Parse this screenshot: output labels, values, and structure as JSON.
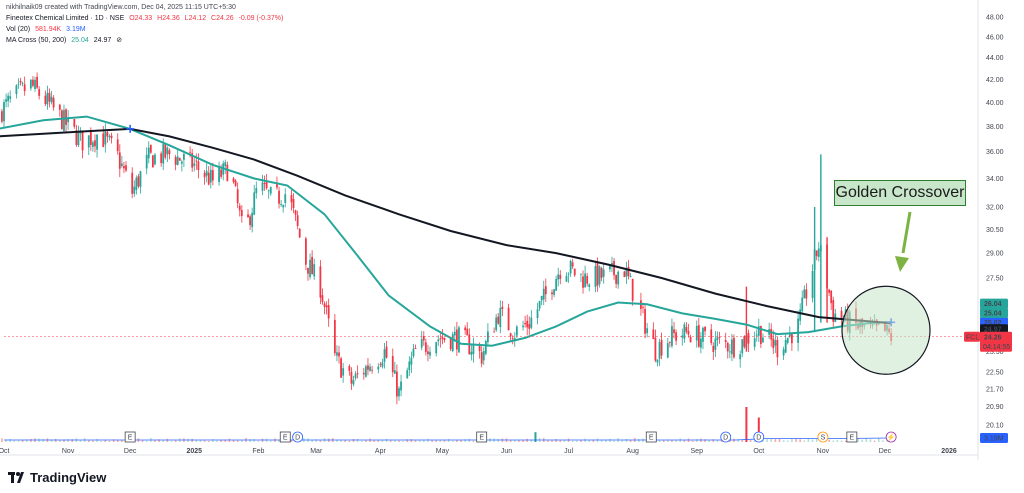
{
  "header": {
    "attribution": "nikhilnaik09 created with TradingView.com, Dec 04, 2025 11:15 UTC+5:30",
    "symbol": "Fineotex Chemical Limited · 1D · NSE",
    "ohlc": {
      "open": "O24.33",
      "high": "H24.36",
      "low": "L24.12",
      "close": "C24.26",
      "change": "-0.09 (-0.37%)"
    },
    "vol_label": "Vol (20)",
    "vol_value": "581.94K",
    "vol_ma": "3.19M",
    "ma_label": "MA Cross (50, 200)",
    "ma50": "25.04",
    "ma200": "24.97",
    "ma_icon": "eye-off-icon"
  },
  "annotation": {
    "text": "Golden Crossover"
  },
  "footer": {
    "brand": "TradingView"
  },
  "price_tags": [
    {
      "label": "26.04",
      "color": "#26a69a",
      "text": "#ffffff"
    },
    {
      "label": "25.02",
      "color": "#2962ff",
      "text": "#ffffff"
    },
    {
      "label": "24.97",
      "color": "#131722",
      "text": "#ffffff"
    },
    {
      "label": "25.04",
      "color": "#26a69a",
      "text": "#ffffff"
    }
  ],
  "current_price": {
    "symbol": "FCL",
    "price": "24.26",
    "countdown": "04:14:55",
    "color": "#f23645"
  },
  "volume_tag": {
    "label": "3.19M",
    "color": "#2962ff"
  },
  "colors": {
    "up": "#26a69a",
    "down": "#f23645",
    "ma50": "#26a69a",
    "ma200": "#131722",
    "highlight": "#c8e6c9"
  },
  "event_markers": [
    "E",
    "E",
    "D",
    "E",
    "E",
    "D",
    "D",
    "S",
    "E",
    "⚡"
  ],
  "chart_data": {
    "type": "candlestick",
    "y_ticks": [
      "48.00",
      "46.00",
      "44.00",
      "42.00",
      "40.00",
      "38.00",
      "36.00",
      "34.00",
      "32.00",
      "30.50",
      "29.00",
      "27.50",
      "26.00",
      "24.50",
      "23.50",
      "22.50",
      "21.70",
      "20.90",
      "20.10"
    ],
    "y_scale": "log",
    "ylim": [
      19.8,
      48.5
    ],
    "x_ticks": [
      "Oct",
      "Nov",
      "Dec",
      "2025",
      "Feb",
      "Mar",
      "Apr",
      "May",
      "Jun",
      "Jul",
      "Aug",
      "Sep",
      "Oct",
      "Nov",
      "Dec",
      "2026"
    ],
    "x_range": [
      "2024-10-01",
      "2026-01-15"
    ],
    "x_tick_dates": [
      "2024-10-01",
      "2024-11-01",
      "2024-12-01",
      "2025-01-01",
      "2025-02-01",
      "2025-03-01",
      "2025-04-01",
      "2025-05-01",
      "2025-06-01",
      "2025-07-01",
      "2025-08-01",
      "2025-09-01",
      "2025-10-01",
      "2025-11-01",
      "2025-12-01",
      "2026-01-01"
    ],
    "close_path": [
      [
        "2024-09-28",
        39.0
      ],
      [
        "2024-10-06",
        40.5
      ],
      [
        "2024-10-14",
        41.5
      ],
      [
        "2024-10-22",
        40.0
      ],
      [
        "2024-11-01",
        38.0
      ],
      [
        "2024-11-08",
        36.8
      ],
      [
        "2024-11-16",
        37.4
      ],
      [
        "2024-11-24",
        36.0
      ],
      [
        "2024-12-02",
        33.0
      ],
      [
        "2024-12-10",
        35.5
      ],
      [
        "2024-12-20",
        35.8
      ],
      [
        "2025-01-01",
        35.0
      ],
      [
        "2025-01-10",
        33.8
      ],
      [
        "2025-01-18",
        34.8
      ],
      [
        "2025-01-25",
        30.0
      ],
      [
        "2025-02-01",
        33.5
      ],
      [
        "2025-02-08",
        32.5
      ],
      [
        "2025-02-15",
        33.0
      ],
      [
        "2025-02-24",
        28.5
      ],
      [
        "2025-03-03",
        27.0
      ],
      [
        "2025-03-10",
        23.2
      ],
      [
        "2025-03-18",
        22.0
      ],
      [
        "2025-03-26",
        22.8
      ],
      [
        "2025-04-03",
        23.5
      ],
      [
        "2025-04-10",
        21.5
      ],
      [
        "2025-04-18",
        23.5
      ],
      [
        "2025-04-28",
        24.2
      ],
      [
        "2025-05-10",
        24.2
      ],
      [
        "2025-05-20",
        23.3
      ],
      [
        "2025-05-28",
        25.5
      ],
      [
        "2025-06-05",
        24.5
      ],
      [
        "2025-06-12",
        25.0
      ],
      [
        "2025-06-20",
        26.5
      ],
      [
        "2025-06-28",
        28.3
      ],
      [
        "2025-07-08",
        27.5
      ],
      [
        "2025-07-18",
        27.6
      ],
      [
        "2025-07-28",
        28.0
      ],
      [
        "2025-08-05",
        25.5
      ],
      [
        "2025-08-12",
        23.6
      ],
      [
        "2025-08-20",
        24.3
      ],
      [
        "2025-08-28",
        24.5
      ],
      [
        "2025-09-08",
        24.0
      ],
      [
        "2025-09-20",
        23.8
      ],
      [
        "2025-10-01",
        24.6
      ],
      [
        "2025-10-10",
        23.7
      ],
      [
        "2025-10-20",
        24.8
      ],
      [
        "2025-10-30",
        29.5
      ],
      [
        "2025-11-06",
        25.5
      ],
      [
        "2025-11-14",
        25.0
      ],
      [
        "2025-11-22",
        24.6
      ],
      [
        "2025-12-01",
        24.5
      ],
      [
        "2025-12-04",
        24.26
      ]
    ],
    "spikes": [
      [
        "2025-09-25",
        27.0,
        23.5
      ],
      [
        "2025-10-31",
        35.8,
        25.0
      ],
      [
        "2025-10-28",
        32.0,
        24.5
      ],
      [
        "2025-11-03",
        30.0,
        25.0
      ]
    ],
    "series": [
      {
        "name": "MA Cross (50, 200)",
        "period": 50,
        "points": [
          [
            "2024-09-28",
            37.8
          ],
          [
            "2024-10-20",
            38.5
          ],
          [
            "2024-11-10",
            38.8
          ],
          [
            "2024-12-01",
            37.8
          ],
          [
            "2024-12-20",
            36.5
          ],
          [
            "2025-01-10",
            35.0
          ],
          [
            "2025-01-30",
            34.0
          ],
          [
            "2025-02-15",
            33.5
          ],
          [
            "2025-03-05",
            31.5
          ],
          [
            "2025-03-20",
            29.0
          ],
          [
            "2025-04-05",
            26.5
          ],
          [
            "2025-04-25",
            24.8
          ],
          [
            "2025-05-10",
            23.9
          ],
          [
            "2025-05-25",
            23.8
          ],
          [
            "2025-06-10",
            24.2
          ],
          [
            "2025-06-25",
            24.8
          ],
          [
            "2025-07-10",
            25.6
          ],
          [
            "2025-07-25",
            26.1
          ],
          [
            "2025-08-08",
            26.0
          ],
          [
            "2025-08-25",
            25.5
          ],
          [
            "2025-09-10",
            25.2
          ],
          [
            "2025-09-25",
            24.9
          ],
          [
            "2025-10-10",
            24.4
          ],
          [
            "2025-10-25",
            24.5
          ],
          [
            "2025-11-10",
            24.8
          ],
          [
            "2025-11-25",
            25.0
          ],
          [
            "2025-12-04",
            25.04
          ]
        ]
      },
      {
        "name": "MA Cross (50, 200)",
        "period": 200,
        "points": [
          [
            "2024-09-28",
            37.2
          ],
          [
            "2024-10-20",
            37.4
          ],
          [
            "2024-11-10",
            37.6
          ],
          [
            "2024-12-01",
            37.8
          ],
          [
            "2024-12-20",
            37.2
          ],
          [
            "2025-01-10",
            36.3
          ],
          [
            "2025-01-30",
            35.4
          ],
          [
            "2025-02-20",
            34.2
          ],
          [
            "2025-03-15",
            32.8
          ],
          [
            "2025-04-10",
            31.5
          ],
          [
            "2025-05-05",
            30.4
          ],
          [
            "2025-06-01",
            29.5
          ],
          [
            "2025-06-25",
            29.0
          ],
          [
            "2025-07-20",
            28.3
          ],
          [
            "2025-08-15",
            27.5
          ],
          [
            "2025-09-10",
            26.6
          ],
          [
            "2025-10-05",
            25.9
          ],
          [
            "2025-10-30",
            25.3
          ],
          [
            "2025-11-20",
            25.1
          ],
          [
            "2025-12-04",
            24.97
          ]
        ]
      }
    ],
    "crossovers": [
      [
        "2024-12-01",
        37.8
      ],
      [
        "2025-12-04",
        25.02
      ]
    ],
    "volume_spikes": [
      [
        "2025-06-15",
        0.28
      ],
      [
        "2025-09-25",
        1.0
      ],
      [
        "2025-10-01",
        0.7
      ]
    ],
    "volume_ma_level": 0.1
  }
}
